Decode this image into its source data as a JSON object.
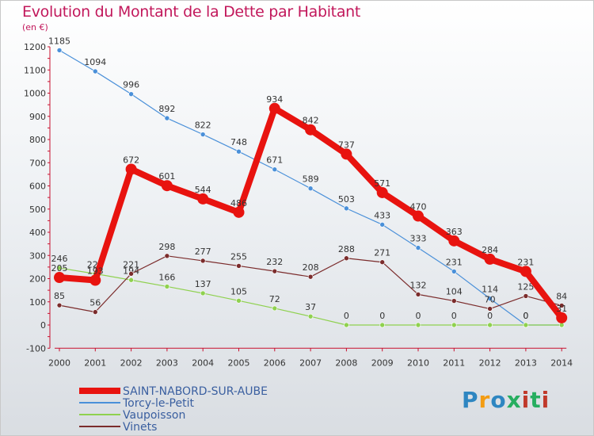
{
  "header": {
    "title": "Evolution du Montant de la Dette par Habitant",
    "unit": "(en €)"
  },
  "logo": {
    "text": "Proxiti",
    "colors": [
      "#f39c12",
      "#2e86c1",
      "#27ae60",
      "#c0392b"
    ]
  },
  "chart_data": {
    "type": "line",
    "title": "Evolution du Montant de la Dette par Habitant",
    "ylabel": "(en €)",
    "ylim": [
      -100,
      1200
    ],
    "yticks": [
      -100,
      0,
      100,
      200,
      300,
      400,
      500,
      600,
      700,
      800,
      900,
      1000,
      1100,
      1200
    ],
    "x": [
      "2000",
      "2001",
      "2002",
      "2003",
      "2004",
      "2005",
      "2006",
      "2007",
      "2008",
      "2009",
      "2010",
      "2011",
      "2012",
      "2013",
      "2014"
    ],
    "grid": false,
    "legend_position": "bottom-left",
    "series": [
      {
        "name": "SAINT-NABORD-SUR-AUBE",
        "color": "#e8130f",
        "width": 8,
        "marker": 7,
        "values": [
          205,
          193,
          672,
          601,
          544,
          486,
          934,
          842,
          737,
          571,
          470,
          363,
          284,
          231,
          31
        ],
        "labels": [
          "205",
          "193",
          "672",
          "601",
          "544",
          "486",
          "934",
          "842",
          "737",
          "571",
          "470",
          "363",
          "284",
          "231",
          "31"
        ]
      },
      {
        "name": "Torcy-le-Petit",
        "color": "#4a90d9",
        "width": 1.2,
        "marker": 3,
        "values": [
          1185,
          1094,
          996,
          892,
          822,
          748,
          671,
          589,
          503,
          433,
          333,
          231,
          114,
          0,
          0
        ],
        "labels": [
          "1185",
          "1094",
          "996",
          "892",
          "822",
          "748",
          "671",
          "589",
          "503",
          "433",
          "333",
          "231",
          "114",
          "0",
          "0"
        ]
      },
      {
        "name": "Vaupoisson",
        "color": "#8fd14f",
        "width": 1.2,
        "marker": 3,
        "values": [
          246,
          221,
          194,
          166,
          137,
          105,
          72,
          37,
          0,
          0,
          0,
          0,
          0,
          0,
          0
        ],
        "labels": [
          "246",
          "221",
          "194",
          "166",
          "137",
          "105",
          "72",
          "37",
          "0",
          "0",
          "0",
          "0",
          "0",
          "0",
          "0"
        ]
      },
      {
        "name": "Vinets",
        "color": "#7b2c2c",
        "width": 1.2,
        "marker": 3,
        "values": [
          85,
          56,
          221,
          298,
          277,
          255,
          232,
          208,
          288,
          271,
          132,
          104,
          70,
          125,
          84
        ],
        "labels": [
          "85",
          "56",
          "221",
          "298",
          "277",
          "255",
          "232",
          "208",
          "288",
          "271",
          "132",
          "104",
          "70",
          "125",
          "84"
        ]
      }
    ]
  }
}
